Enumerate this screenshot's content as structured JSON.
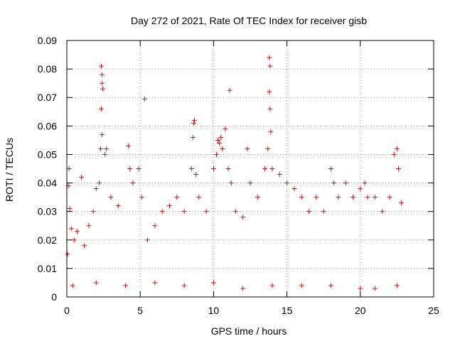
{
  "chart_data": {
    "type": "scatter",
    "title": "Day 272 of 2021, Rate Of TEC Index for receiver gisb",
    "xlabel": "GPS time / hours",
    "ylabel": "ROTI / TECUs",
    "xlim": [
      0,
      25
    ],
    "ylim": [
      0,
      0.09
    ],
    "xticks": [
      "0",
      "5",
      "10",
      "15",
      "20",
      "25"
    ],
    "yticks": [
      "0",
      "0.01",
      "0.02",
      "0.03",
      "0.04",
      "0.05",
      "0.06",
      "0.07",
      "0.08",
      "0.09"
    ],
    "grid": true,
    "marker": "+",
    "color": "#ff0000",
    "series": [
      {
        "name": "",
        "points": [
          [
            0.05,
            0.015
          ],
          [
            0.1,
            0.039
          ],
          [
            0.15,
            0.045
          ],
          [
            0.2,
            0.031
          ],
          [
            0.3,
            0.024
          ],
          [
            0.5,
            0.02
          ],
          [
            0.7,
            0.023
          ],
          [
            1.0,
            0.042
          ],
          [
            1.2,
            0.018
          ],
          [
            1.5,
            0.025
          ],
          [
            1.8,
            0.03
          ],
          [
            2.0,
            0.038
          ],
          [
            2.2,
            0.04
          ],
          [
            2.3,
            0.052
          ],
          [
            2.35,
            0.081
          ],
          [
            2.4,
            0.078
          ],
          [
            2.4,
            0.075
          ],
          [
            2.45,
            0.073
          ],
          [
            2.35,
            0.066
          ],
          [
            2.4,
            0.057
          ],
          [
            2.6,
            0.05
          ],
          [
            2.7,
            0.052
          ],
          [
            3.0,
            0.035
          ],
          [
            3.5,
            0.032
          ],
          [
            4.2,
            0.053
          ],
          [
            4.3,
            0.045
          ],
          [
            4.5,
            0.04
          ],
          [
            4.9,
            0.045
          ],
          [
            5.1,
            0.035
          ],
          [
            5.3,
            0.0695
          ],
          [
            5.5,
            0.02
          ],
          [
            6.0,
            0.025
          ],
          [
            6.5,
            0.03
          ],
          [
            7.0,
            0.032
          ],
          [
            7.5,
            0.035
          ],
          [
            8.0,
            0.03
          ],
          [
            8.5,
            0.045
          ],
          [
            8.6,
            0.056
          ],
          [
            8.65,
            0.061
          ],
          [
            8.7,
            0.062
          ],
          [
            8.8,
            0.043
          ],
          [
            9.0,
            0.035
          ],
          [
            9.5,
            0.03
          ],
          [
            10.0,
            0.045
          ],
          [
            10.2,
            0.05
          ],
          [
            10.3,
            0.055
          ],
          [
            10.4,
            0.054
          ],
          [
            10.5,
            0.056
          ],
          [
            10.6,
            0.052
          ],
          [
            10.8,
            0.059
          ],
          [
            11.0,
            0.045
          ],
          [
            11.1,
            0.0725
          ],
          [
            11.2,
            0.04
          ],
          [
            11.5,
            0.03
          ],
          [
            12.0,
            0.028
          ],
          [
            12.3,
            0.052
          ],
          [
            12.5,
            0.04
          ],
          [
            13.0,
            0.035
          ],
          [
            13.5,
            0.045
          ],
          [
            13.7,
            0.052
          ],
          [
            13.8,
            0.084
          ],
          [
            13.85,
            0.081
          ],
          [
            13.8,
            0.072
          ],
          [
            13.85,
            0.066
          ],
          [
            13.9,
            0.058
          ],
          [
            14.0,
            0.045
          ],
          [
            14.5,
            0.043
          ],
          [
            15.0,
            0.04
          ],
          [
            15.5,
            0.038
          ],
          [
            16.0,
            0.035
          ],
          [
            16.5,
            0.03
          ],
          [
            17.0,
            0.035
          ],
          [
            17.5,
            0.03
          ],
          [
            18.0,
            0.045
          ],
          [
            18.2,
            0.04
          ],
          [
            18.5,
            0.035
          ],
          [
            19.0,
            0.04
          ],
          [
            19.5,
            0.035
          ],
          [
            20.0,
            0.038
          ],
          [
            20.3,
            0.04
          ],
          [
            20.5,
            0.035
          ],
          [
            21.0,
            0.035
          ],
          [
            21.5,
            0.03
          ],
          [
            22.0,
            0.035
          ],
          [
            22.3,
            0.05
          ],
          [
            22.5,
            0.052
          ],
          [
            22.6,
            0.045
          ],
          [
            22.8,
            0.033
          ],
          [
            0.4,
            0.004
          ],
          [
            2.0,
            0.005
          ],
          [
            4.0,
            0.004
          ],
          [
            6.0,
            0.005
          ],
          [
            8.0,
            0.004
          ],
          [
            10.0,
            0.005
          ],
          [
            12.0,
            0.003
          ],
          [
            14.0,
            0.004
          ],
          [
            16.0,
            0.004
          ],
          [
            18.0,
            0.004
          ],
          [
            20.0,
            0.003
          ],
          [
            21.0,
            0.003
          ],
          [
            22.5,
            0.004
          ]
        ]
      }
    ]
  }
}
